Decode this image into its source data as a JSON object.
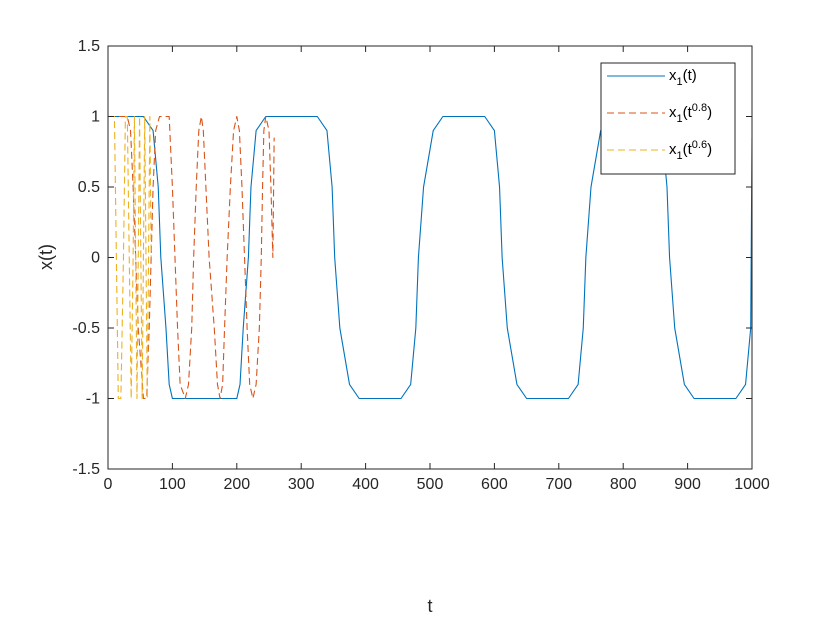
{
  "chart_data": {
    "type": "line",
    "xlabel": "t",
    "ylabel": "x(t)",
    "xlim": [
      0,
      1000
    ],
    "ylim": [
      -1.5,
      1.5
    ],
    "xticks": [
      "0",
      "100",
      "200",
      "300",
      "400",
      "500",
      "600",
      "700",
      "800",
      "900",
      "1000"
    ],
    "yticks": [
      "-1.5",
      "-1",
      "-0.5",
      "0",
      "0.5",
      "1",
      "1.5"
    ],
    "grid": false,
    "legend_position": "top-right",
    "series": [
      {
        "name": "x1(t)",
        "legend_base": "x",
        "legend_sub": "1",
        "legend_arg": "t",
        "legend_sup": "",
        "color": "#0072BD",
        "style": "solid",
        "x": [
          0,
          55,
          70,
          78,
          82,
          90,
          95,
          100,
          200,
          205,
          210,
          218,
          222,
          230,
          245,
          260,
          325,
          340,
          348,
          352,
          360,
          375,
          390,
          455,
          470,
          478,
          482,
          490,
          505,
          520,
          585,
          600,
          608,
          612,
          620,
          635,
          650,
          715,
          730,
          738,
          742,
          750,
          765,
          780,
          845,
          860,
          868,
          872,
          880,
          895,
          910,
          975,
          990,
          998,
          1000
        ],
        "y": [
          1,
          1,
          0.9,
          0.5,
          0,
          -0.5,
          -0.9,
          -1,
          -1,
          -0.9,
          -0.5,
          0,
          0.5,
          0.9,
          1,
          1,
          1,
          0.9,
          0.5,
          0,
          -0.5,
          -0.9,
          -1,
          -1,
          -0.9,
          -0.5,
          0,
          0.5,
          0.9,
          1,
          1,
          0.9,
          0.5,
          0,
          -0.5,
          -0.9,
          -1,
          -1,
          -0.9,
          -0.5,
          0,
          0.5,
          0.9,
          1,
          1,
          0.9,
          0.5,
          0,
          -0.5,
          -0.9,
          -1,
          -1,
          -0.9,
          -0.5,
          0.85
        ]
      },
      {
        "name": "x1(t^0.8)",
        "legend_base": "x",
        "legend_sub": "1",
        "legend_arg": "t",
        "legend_sup": "0.8",
        "color": "#D95319",
        "style": "dashed",
        "x": [
          0,
          30,
          35,
          39,
          43,
          47,
          55,
          60,
          64,
          67,
          70,
          74,
          80,
          95,
          100,
          104,
          108,
          112,
          120,
          125,
          130,
          133,
          137,
          141,
          145,
          148,
          152,
          157,
          165,
          170,
          174,
          178,
          181,
          185,
          190,
          195,
          200,
          204,
          208,
          212,
          216,
          220,
          225,
          230,
          235,
          238,
          240,
          242,
          245,
          250,
          253,
          256,
          258
        ],
        "y": [
          1,
          1,
          0.9,
          0.5,
          0,
          -0.5,
          -1,
          -1,
          -0.5,
          0,
          0.5,
          0.9,
          1,
          1,
          0.5,
          0,
          -0.5,
          -0.9,
          -1,
          -0.9,
          -0.5,
          0,
          0.5,
          0.9,
          1,
          0.9,
          0.5,
          0,
          -0.5,
          -0.9,
          -1,
          -0.9,
          -0.5,
          0,
          0.5,
          0.9,
          1,
          0.9,
          0.5,
          0,
          -0.5,
          -0.9,
          -1,
          -0.9,
          -0.5,
          0,
          0.5,
          0.9,
          1,
          0.9,
          0.5,
          0,
          0.85
        ]
      },
      {
        "name": "x1(t^0.6)",
        "legend_base": "x",
        "legend_sub": "1",
        "legend_arg": "t",
        "legend_sup": "0.6",
        "color": "#EDB120",
        "style": "dashed",
        "x": [
          0,
          10,
          13,
          16,
          20,
          24,
          27,
          30,
          33,
          36,
          39,
          41,
          43,
          45,
          47,
          49,
          51,
          53,
          55,
          57,
          59,
          61,
          63,
          65,
          67
        ],
        "y": [
          1,
          1,
          0,
          -1,
          -1,
          0,
          1,
          1,
          0,
          -1,
          0,
          1,
          0,
          -1,
          0,
          1,
          0,
          -1,
          0,
          1,
          0,
          -1,
          0,
          1,
          0
        ]
      }
    ]
  }
}
